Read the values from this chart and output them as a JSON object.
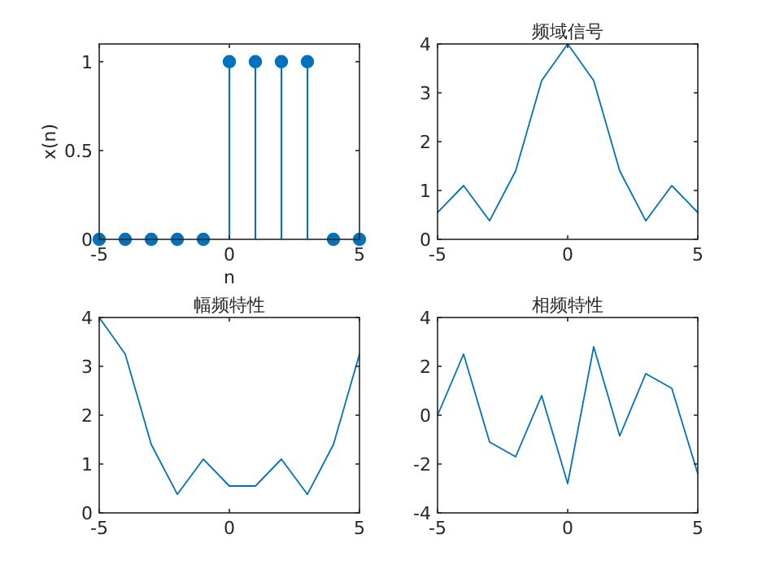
{
  "chart_data": [
    {
      "type": "lollipop",
      "x": [
        -5,
        -4,
        -3,
        -2,
        -1,
        0,
        1,
        2,
        3,
        4,
        5
      ],
      "series": [
        {
          "color": "#0072bd",
          "values": [
            0,
            0,
            0,
            0,
            0,
            1,
            1,
            1,
            1,
            0,
            0
          ]
        }
      ],
      "xlim": [
        -5,
        5
      ],
      "ylim": [
        0,
        1.1
      ],
      "xticks": [
        -5,
        0,
        5
      ],
      "yticks": [
        0,
        0.5,
        1
      ],
      "xlabel": "n",
      "ylabel": "x(n)",
      "marker": "circle",
      "grid": false
    },
    {
      "type": "line",
      "title": "频域信号",
      "x": [
        -5,
        -4,
        -3,
        -2,
        -1,
        0,
        1,
        2,
        3,
        4,
        5
      ],
      "series": [
        {
          "color": "#0072bd",
          "values": [
            0.55,
            1.1,
            0.38,
            1.4,
            3.25,
            4.0,
            3.25,
            1.4,
            0.38,
            1.1,
            0.55
          ]
        }
      ],
      "xlim": [
        -5,
        5
      ],
      "ylim": [
        0,
        4
      ],
      "xticks": [
        -5,
        0,
        5
      ],
      "yticks": [
        0,
        1,
        2,
        3,
        4
      ],
      "grid": false
    },
    {
      "type": "line",
      "title": "幅频特性",
      "x": [
        -5,
        -4,
        -3,
        -2,
        -1,
        0,
        1,
        2,
        3,
        4,
        5
      ],
      "series": [
        {
          "color": "#0072bd",
          "values": [
            4.0,
            3.25,
            1.4,
            0.38,
            1.1,
            0.55,
            0.55,
            1.1,
            0.38,
            1.4,
            3.25
          ]
        }
      ],
      "xlim": [
        -5,
        5
      ],
      "ylim": [
        0,
        4
      ],
      "xticks": [
        -5,
        0,
        5
      ],
      "yticks": [
        0,
        1,
        2,
        3,
        4
      ],
      "grid": false
    },
    {
      "type": "line",
      "title": "相频特性",
      "x": [
        -5,
        -4,
        -3,
        -2,
        -1,
        0,
        1,
        2,
        3,
        4,
        5
      ],
      "series": [
        {
          "color": "#0072bd",
          "values": [
            0.0,
            2.5,
            -1.1,
            -1.7,
            0.8,
            -2.8,
            2.8,
            -0.85,
            1.7,
            1.1,
            -2.4
          ]
        }
      ],
      "xlim": [
        -5,
        5
      ],
      "ylim": [
        -4,
        4
      ],
      "xticks": [
        -5,
        0,
        5
      ],
      "yticks": [
        -4,
        -2,
        0,
        2,
        4
      ],
      "grid": false
    }
  ]
}
